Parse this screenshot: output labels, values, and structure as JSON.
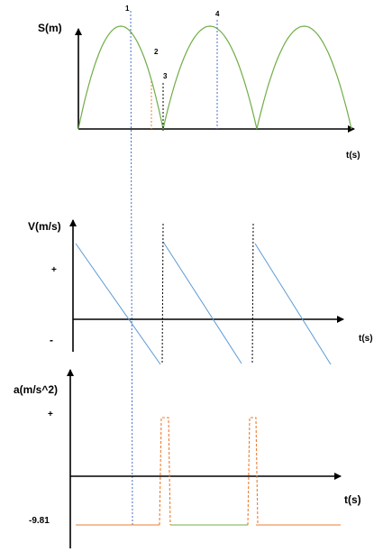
{
  "graphs": {
    "position": {
      "y_label": "S(m)",
      "x_label": "t(s)",
      "markers": [
        "1",
        "2",
        "3",
        "4"
      ]
    },
    "velocity": {
      "y_label": "V(m/s)",
      "x_label": "t(s)",
      "positive_label": "+",
      "negative_label": "-"
    },
    "acceleration": {
      "y_label": "a(m/s^2)",
      "x_label": "t(s)",
      "positive_label": "+",
      "value_label": "-9.81"
    }
  },
  "colors": {
    "position_curve": "#70ad47",
    "velocity_line": "#5b9bd5",
    "acceleration_line": "#ed7d31",
    "guide_blue": "#4472c4",
    "guide_orange": "#ed7d31",
    "guide_black": "#000000",
    "axis": "#000000"
  }
}
